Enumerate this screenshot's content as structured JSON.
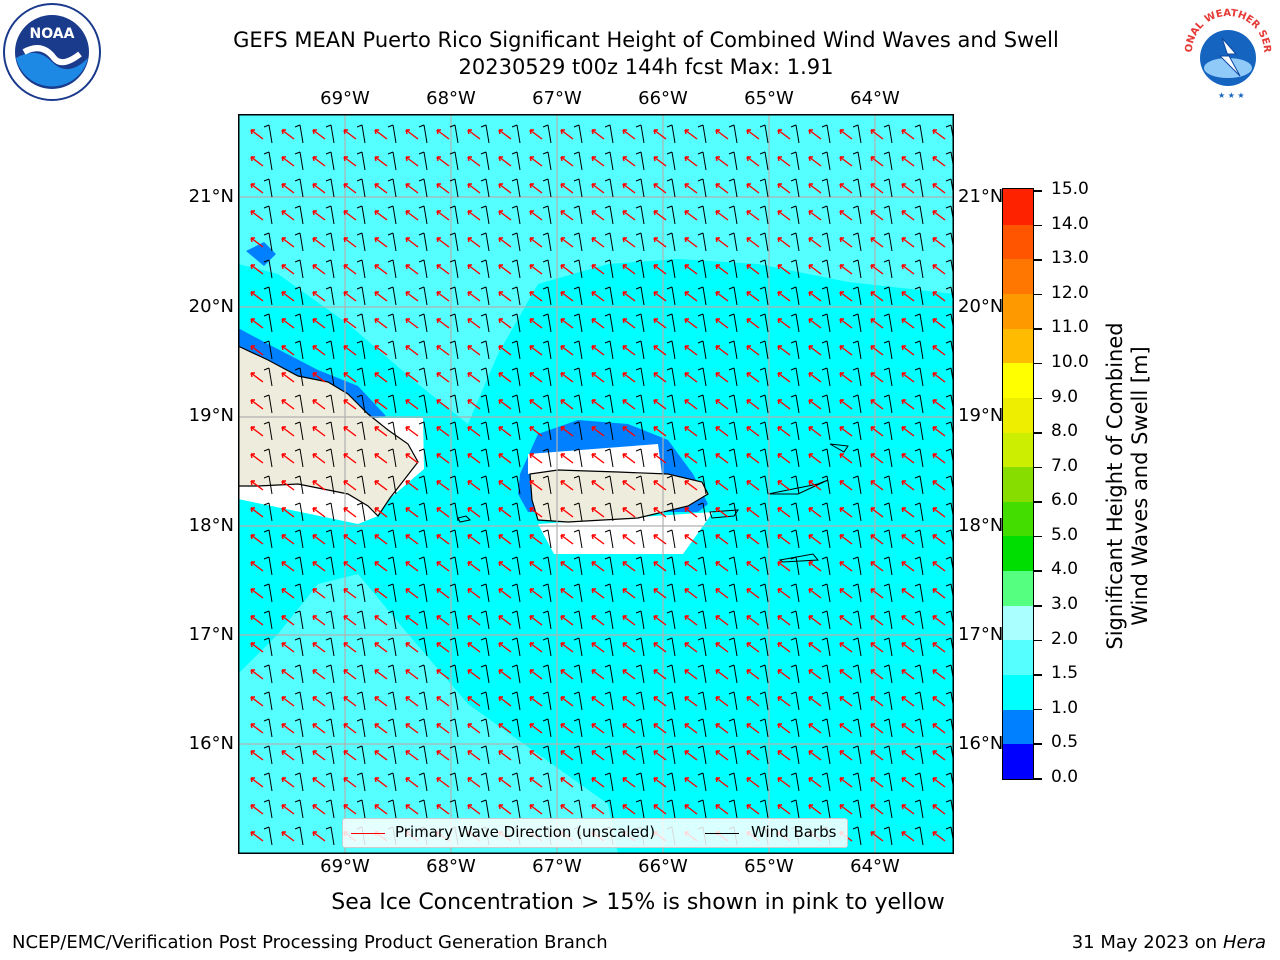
{
  "title": {
    "line1": "GEFS MEAN Puerto Rico Significant Height of Combined Wind Waves and Swell",
    "line2": "20230529 t00z 144h fcst   Max: 1.91"
  },
  "logos": {
    "left": "NOAA",
    "right_text": "NATIONAL WEATHER SERVICE"
  },
  "map": {
    "lon_labels": [
      "69°W",
      "68°W",
      "67°W",
      "66°W",
      "65°W",
      "64°W"
    ],
    "lat_labels": [
      "21°N",
      "20°N",
      "19°N",
      "18°N",
      "17°N",
      "16°N"
    ],
    "colors": {
      "ocean_main": "#00ffff",
      "ocean_light": "#55ffff",
      "ocean_deep": "#0080ff",
      "land": "#eeecdc",
      "gap": "#ffffff",
      "wave_arrow": "#ff0000",
      "wind_barb": "#000000"
    },
    "legend": {
      "wave": "Primary Wave Direction (unscaled)",
      "wind": "Wind Barbs"
    }
  },
  "colorbar": {
    "title_line1": "Significant Height of Combined",
    "title_line2": "Wind Waves and Swell [m]",
    "ticks": [
      "15.0",
      "14.0",
      "13.0",
      "12.0",
      "11.0",
      "10.0",
      "9.0",
      "8.0",
      "7.0",
      "6.0",
      "5.0",
      "4.0",
      "3.0",
      "2.0",
      "1.5",
      "1.0",
      "0.5",
      "0.0"
    ],
    "colors": [
      "#0000ff",
      "#0080ff",
      "#00ffff",
      "#55ffff",
      "#aaffff",
      "#55ff80",
      "#00dd00",
      "#44dd00",
      "#88dd00",
      "#ccee00",
      "#eeee00",
      "#ffff00",
      "#ffbb00",
      "#ff9900",
      "#ff7700",
      "#ff5500",
      "#ff2200"
    ]
  },
  "sea_ice_note": "Sea Ice Concentration > 15% is shown in pink to yellow",
  "footer": {
    "left": "NCEP/EMC/Verification Post Processing Product Generation Branch",
    "right_date": "31 May 2023 on",
    "right_host": "Hera"
  }
}
